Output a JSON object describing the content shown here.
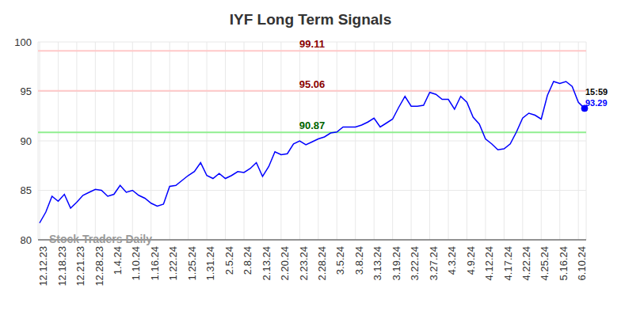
{
  "chart_data": {
    "type": "line",
    "title": "IYF Long Term Signals",
    "watermark": "Stock Traders Daily",
    "last_point_time": "15:59",
    "categories": [
      "12.12.23",
      null,
      null,
      "12.18.23",
      null,
      null,
      "12.21.23",
      null,
      null,
      "12.28.23",
      null,
      null,
      "1.4.24",
      null,
      null,
      "1.10.24",
      null,
      null,
      "1.16.24",
      null,
      null,
      "1.22.24",
      null,
      null,
      "1.25.24",
      null,
      null,
      "1.31.24",
      null,
      null,
      "2.5.24",
      null,
      null,
      "2.8.24",
      null,
      null,
      "2.13.24",
      null,
      null,
      "2.20.24",
      null,
      null,
      "2.23.24",
      null,
      null,
      "2.28.24",
      null,
      null,
      "3.5.24",
      null,
      null,
      "3.8.24",
      null,
      null,
      "3.13.24",
      null,
      null,
      "3.19.24",
      null,
      null,
      "3.22.24",
      null,
      null,
      "3.27.24",
      null,
      null,
      "4.3.24",
      null,
      null,
      "4.9.24",
      null,
      null,
      "4.12.24",
      null,
      null,
      "4.17.24",
      null,
      null,
      "4.22.24",
      null,
      null,
      "4.25.24",
      null,
      null,
      "5.16.24",
      null,
      null,
      "6.10.24",
      null
    ],
    "values": [
      81.7,
      82.8,
      84.4,
      83.9,
      84.6,
      83.2,
      83.8,
      84.5,
      84.8,
      85.1,
      85.0,
      84.4,
      84.6,
      85.5,
      84.8,
      85.0,
      84.5,
      84.2,
      83.7,
      83.4,
      83.6,
      85.4,
      85.5,
      86.0,
      86.5,
      86.9,
      87.8,
      86.5,
      86.2,
      86.7,
      86.2,
      86.5,
      86.9,
      86.8,
      87.2,
      87.8,
      86.4,
      87.4,
      88.9,
      88.6,
      88.7,
      89.7,
      90.0,
      89.6,
      89.9,
      90.2,
      90.4,
      90.8,
      90.9,
      91.4,
      91.4,
      91.4,
      91.6,
      91.9,
      92.3,
      91.4,
      91.8,
      92.2,
      93.4,
      94.5,
      93.5,
      93.5,
      93.6,
      94.9,
      94.7,
      94.2,
      94.2,
      93.2,
      94.5,
      93.9,
      92.4,
      91.7,
      90.2,
      89.7,
      89.1,
      89.2,
      89.7,
      90.9,
      92.3,
      92.8,
      92.6,
      92.2,
      94.6,
      96.0,
      95.8,
      96.0,
      95.5,
      93.9,
      93.29
    ],
    "color": "#0000ff",
    "reference_lines": [
      {
        "value": 99.11,
        "color": "#ffc8c8"
      },
      {
        "value": 95.06,
        "color": "#ffc8c8"
      },
      {
        "value": 90.87,
        "color": "#90ee90"
      }
    ],
    "ylim": [
      80,
      100
    ],
    "yticks": [
      80,
      85,
      90,
      95,
      100
    ],
    "grid": true
  }
}
